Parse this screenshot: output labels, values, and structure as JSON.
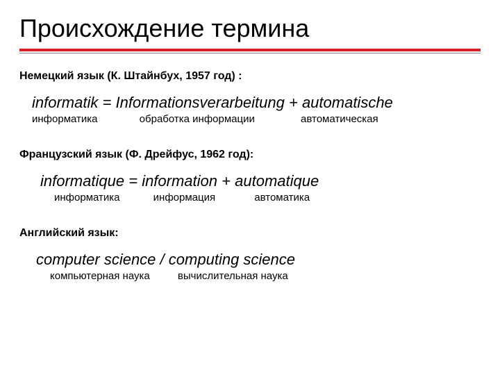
{
  "title": "Происхождение термина",
  "colors": {
    "accent": "#d81e26",
    "thin_line": "#808080",
    "text": "#000000",
    "background": "#ffffff"
  },
  "sections": {
    "german": {
      "label": "Немецкий язык (К. Штайнбух, 1957 год) :",
      "equation": {
        "lhs": "informatik",
        "eq": "=",
        "part1": "Informationsverarbeitung",
        "plus": "+",
        "part2": "automatische"
      },
      "translation": {
        "lhs": "информатика",
        "part1": "обработка информации",
        "part2": "автоматическая"
      }
    },
    "french": {
      "label": "Французский язык (Ф. Дрейфус, 1962 год):",
      "equation": {
        "lhs": "informatique",
        "eq": "=",
        "part1": "information",
        "plus": "+",
        "part2": "automatique"
      },
      "translation": {
        "lhs": "информатика",
        "part1": "информация",
        "part2": "автоматика"
      }
    },
    "english": {
      "label": "Английский язык:",
      "equation": {
        "part1": "computer science",
        "sep": "/",
        "part2": "computing science"
      },
      "translation": {
        "part1": "компьютерная наука",
        "part2": "вычислительная наука"
      }
    }
  }
}
